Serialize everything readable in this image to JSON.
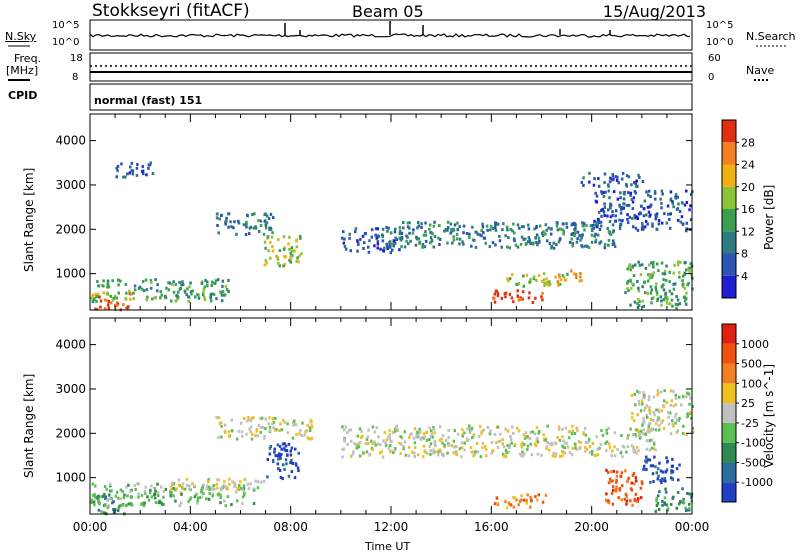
{
  "header": {
    "radar_title": "Stokkseyri (fitACF)",
    "beam": "Beam 05",
    "date": "15/Aug/2013"
  },
  "top_panels": {
    "nsky_label": "N.Sky",
    "nsky_ticks": [
      "10^5",
      "10^0"
    ],
    "nsearch_label": "N.Search",
    "nsearch_ticks": [
      "10^5",
      "10^0"
    ],
    "freq_label": "Freq.",
    "freq_unit": "[MHz]",
    "freq_ticks": [
      "18",
      "8"
    ],
    "nave_label": "Nave",
    "nave_ticks": [
      "60",
      "0"
    ],
    "cpid_label": "CPID",
    "cpid_text": "normal (fast) 151"
  },
  "chart_data": [
    {
      "type": "heatmap",
      "name": "power-panel",
      "ylabel": "Slant Range [km]",
      "xlabel": "",
      "yticks": [
        "1000",
        "2000",
        "3000",
        "4000"
      ],
      "ylim": [
        180,
        4600
      ],
      "xlim_hours": [
        0,
        24
      ],
      "colorbar": {
        "label": "Power [dB]",
        "ticks": [
          "4",
          "8",
          "12",
          "16",
          "20",
          "24",
          "28"
        ],
        "colors": [
          "#1e1ed0",
          "#2a55b0",
          "#2f7a80",
          "#3aa050",
          "#8cc33a",
          "#f0b010",
          "#f08020",
          "#e03010"
        ]
      },
      "regions": [
        {
          "t0": 0.0,
          "t1": 1.6,
          "r0": 200,
          "r1": 600,
          "level": 6
        },
        {
          "t0": 0.0,
          "t1": 5.5,
          "r0": 400,
          "r1": 900,
          "level": 3
        },
        {
          "t0": 1.0,
          "t1": 2.5,
          "r0": 3200,
          "r1": 3550,
          "level": 1
        },
        {
          "t0": 5.0,
          "t1": 7.3,
          "r0": 1900,
          "r1": 2400,
          "level": 2
        },
        {
          "t0": 6.9,
          "t1": 8.4,
          "r0": 1200,
          "r1": 1900,
          "level": 4
        },
        {
          "t0": 10.0,
          "t1": 12.4,
          "r0": 1500,
          "r1": 2050,
          "level": 1
        },
        {
          "t0": 11.6,
          "t1": 21.0,
          "r0": 1600,
          "r1": 2200,
          "level": 2
        },
        {
          "t0": 16.0,
          "t1": 18.0,
          "r0": 350,
          "r1": 650,
          "level": 7
        },
        {
          "t0": 16.5,
          "t1": 19.0,
          "r0": 750,
          "r1": 1050,
          "level": 4
        },
        {
          "t0": 18.5,
          "t1": 19.6,
          "r0": 850,
          "r1": 1100,
          "level": 5
        },
        {
          "t0": 20.0,
          "t1": 24.0,
          "r0": 2000,
          "r1": 2900,
          "level": 1
        },
        {
          "t0": 21.3,
          "t1": 24.0,
          "r0": 250,
          "r1": 1300,
          "level": 3
        },
        {
          "t0": 19.5,
          "t1": 22.0,
          "r0": 3000,
          "r1": 3300,
          "level": 1
        }
      ]
    },
    {
      "type": "heatmap",
      "name": "velocity-panel",
      "ylabel": "Slant Range [km]",
      "xlabel": "Time UT",
      "yticks": [
        "1000",
        "2000",
        "3000",
        "4000"
      ],
      "xticks": [
        "00:00",
        "04:00",
        "08:00",
        "12:00",
        "16:00",
        "20:00",
        "00:00"
      ],
      "ylim": [
        180,
        4600
      ],
      "xlim_hours": [
        0,
        24
      ],
      "colorbar": {
        "label": "Velocity [m s^-1]",
        "ticks": [
          "1000",
          "500",
          "100",
          "25",
          "-25",
          "-100",
          "-500",
          "-1000"
        ],
        "colors": [
          "#2040c0",
          "#2c6e9e",
          "#2e8a50",
          "#5cc050",
          "#c0c0c0",
          "#f0c020",
          "#f08020",
          "#f05010",
          "#e02010"
        ]
      },
      "regions": [
        {
          "t0": 0.0,
          "t1": 1.6,
          "r0": 200,
          "r1": 650,
          "level": 2
        },
        {
          "t0": 0.0,
          "t1": 6.5,
          "r0": 400,
          "r1": 900,
          "level": 3
        },
        {
          "t0": 3.0,
          "t1": 7.0,
          "r0": 750,
          "r1": 1000,
          "level": 4
        },
        {
          "t0": 5.0,
          "t1": 8.8,
          "r0": 1900,
          "r1": 2400,
          "level": 4
        },
        {
          "t0": 7.0,
          "t1": 8.3,
          "r0": 1000,
          "r1": 1800,
          "level": 0
        },
        {
          "t0": 10.0,
          "t1": 22.5,
          "r0": 1500,
          "r1": 2200,
          "level": 4
        },
        {
          "t0": 16.0,
          "t1": 18.2,
          "r0": 350,
          "r1": 650,
          "level": 6
        },
        {
          "t0": 20.5,
          "t1": 22.0,
          "r0": 400,
          "r1": 1200,
          "level": 7
        },
        {
          "t0": 22.0,
          "t1": 23.5,
          "r0": 900,
          "r1": 1500,
          "level": 0
        },
        {
          "t0": 21.5,
          "t1": 24.0,
          "r0": 2000,
          "r1": 3000,
          "level": 4
        },
        {
          "t0": 22.5,
          "t1": 24.0,
          "r0": 250,
          "r1": 800,
          "level": 2
        }
      ]
    }
  ]
}
